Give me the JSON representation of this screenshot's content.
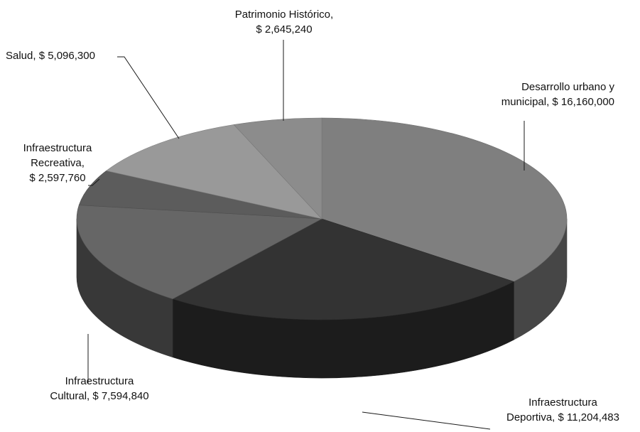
{
  "chart_data": {
    "type": "pie",
    "title": "",
    "style": "3d",
    "legend": "none",
    "slices": [
      {
        "label_lines": [
          "Desarrollo urbano y",
          "municipal,  $ 16,160,000"
        ],
        "category": "Desarrollo urbano y municipal",
        "value": 16160000,
        "color": "#7f7f7f"
      },
      {
        "label_lines": [
          "Infraestructura",
          "Deportiva, $ 11,204,483"
        ],
        "category": "Infraestructura Deportiva",
        "value": 11204483,
        "color": "#333333"
      },
      {
        "label_lines": [
          "Infraestructura",
          "Cultural, $ 7,594,840"
        ],
        "category": "Infraestructura Cultural",
        "value": 7594840,
        "color": "#666666"
      },
      {
        "label_lines": [
          "Infraestructura",
          "Recreativa,",
          "$ 2,597,760"
        ],
        "category": "Infraestructura Recreativa",
        "value": 2597760,
        "color": "#5c5c5c"
      },
      {
        "label_lines": [
          "Salud, $ 5,096,300"
        ],
        "category": "Salud",
        "value": 5096300,
        "color": "#999999"
      },
      {
        "label_lines": [
          "Patrimonio Histórico,",
          "$ 2,645,240"
        ],
        "category": "Patrimonio Histórico",
        "value": 2645240,
        "color": "#8c8c8c"
      }
    ]
  }
}
